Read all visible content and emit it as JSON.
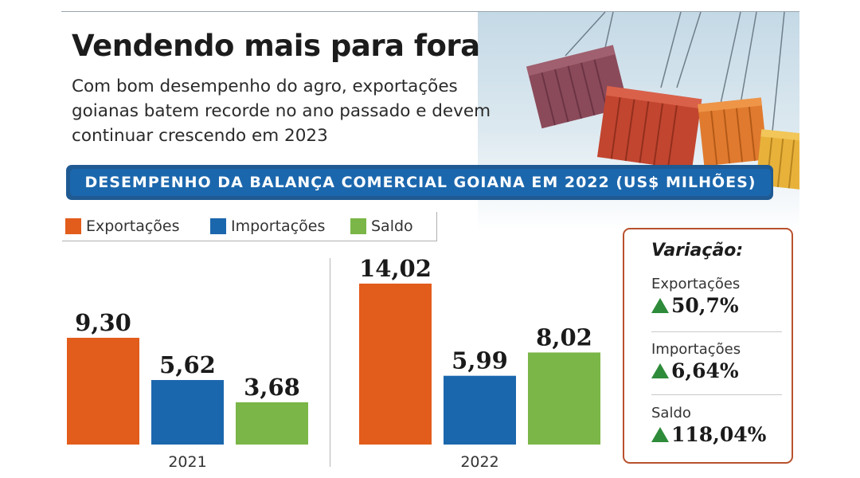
{
  "header": {
    "title": "Vendendo mais para fora",
    "subtitle": "Com bom desempenho do agro, exportações goianas batem recorde no ano passado e devem continuar crescendo em 2023"
  },
  "banner": "DESEMPENHO DA BALANÇA COMERCIAL GOIANA EM 2022 (US$ MILHÕES)",
  "illustration": "shipping-containers-hanging-from-cranes",
  "legend": [
    {
      "label": "Exportações",
      "color": "#e25c1c"
    },
    {
      "label": "Importações",
      "color": "#1b67ad"
    },
    {
      "label": "Saldo",
      "color": "#7ab648"
    }
  ],
  "chart_data": {
    "type": "bar",
    "title": "DESEMPENHO DA BALANÇA COMERCIAL GOIANA EM 2022 (US$ MILHÕES)",
    "categories": [
      "2021",
      "2022"
    ],
    "series": [
      {
        "name": "Exportações",
        "color": "#e25c1c",
        "values": [
          9.3,
          14.02
        ],
        "labels": [
          "9,30",
          "14,02"
        ]
      },
      {
        "name": "Importações",
        "color": "#1b67ad",
        "values": [
          5.62,
          5.99
        ],
        "labels": [
          "5,62",
          "5,99"
        ]
      },
      {
        "name": "Saldo",
        "color": "#7ab648",
        "values": [
          3.68,
          8.02
        ],
        "labels": [
          "3,68",
          "8,02"
        ]
      }
    ],
    "ylim": [
      0,
      14.02
    ],
    "grid": false,
    "legend_position": "top-left"
  },
  "variation": {
    "title": "Variação:",
    "items": [
      {
        "label": "Exportações",
        "value": "50,7%",
        "direction": "up"
      },
      {
        "label": "Importações",
        "value": "6,64%",
        "direction": "up"
      },
      {
        "label": "Saldo",
        "value": "118,04%",
        "direction": "up"
      }
    ],
    "up_color": "#2e8b3a"
  }
}
